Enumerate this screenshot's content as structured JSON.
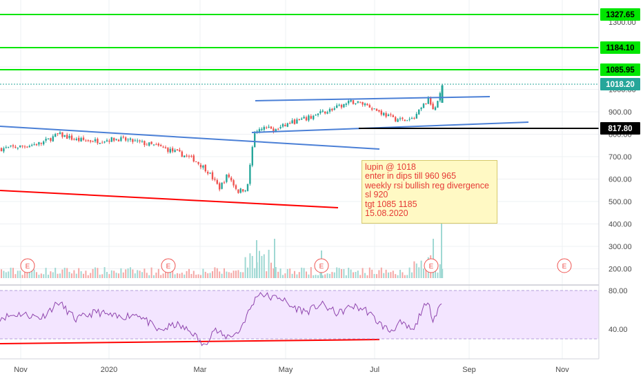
{
  "chart_data": {
    "type": "candlestick",
    "symbol": "LUPIN",
    "price_axis": {
      "ticks": [
        "1300.00",
        "1100.00",
        "1000.00",
        "900.00",
        "800.00",
        "700.00",
        "600.00",
        "500.00",
        "400.00",
        "300.00",
        "200.00"
      ],
      "ylim": [
        150,
        1350
      ]
    },
    "time_axis": {
      "ticks": [
        "Nov",
        "2020",
        "Mar",
        "May",
        "Jul",
        "Sep",
        "Nov"
      ]
    },
    "price_labels": [
      {
        "name": "resistance-1327",
        "value": "1327.65",
        "color": "#00e600",
        "kind": "horizontal"
      },
      {
        "name": "resistance-1184",
        "value": "1184.10",
        "color": "#00e600",
        "kind": "horizontal"
      },
      {
        "name": "resistance-1085",
        "value": "1085.95",
        "color": "#00e600",
        "kind": "horizontal"
      },
      {
        "name": "last-price",
        "value": "1018.20",
        "color": "#26a69a",
        "kind": "last"
      },
      {
        "name": "breakout-level",
        "value": "817.80",
        "color": "#000000",
        "kind": "horizontal"
      }
    ],
    "earnings_markers": [
      "E",
      "E",
      "E",
      "E",
      "E"
    ],
    "annotation": {
      "lines": [
        "lupin @ 1018",
        "enter in dips till 960 965",
        "weekly rsi bullish reg divergence",
        "sl 920",
        "tgt 1085 1185",
        "15.08.2020"
      ]
    },
    "rsi": {
      "ticks": [
        "80.00",
        "40.00"
      ],
      "ylim": [
        20,
        82
      ]
    },
    "colors": {
      "up": "#26a69a",
      "down": "#ef5350",
      "trend": "#4a7fd6",
      "support": "#ff0000",
      "rsi_line": "#8e44ad",
      "rsi_band": "#f3e5ff"
    }
  }
}
